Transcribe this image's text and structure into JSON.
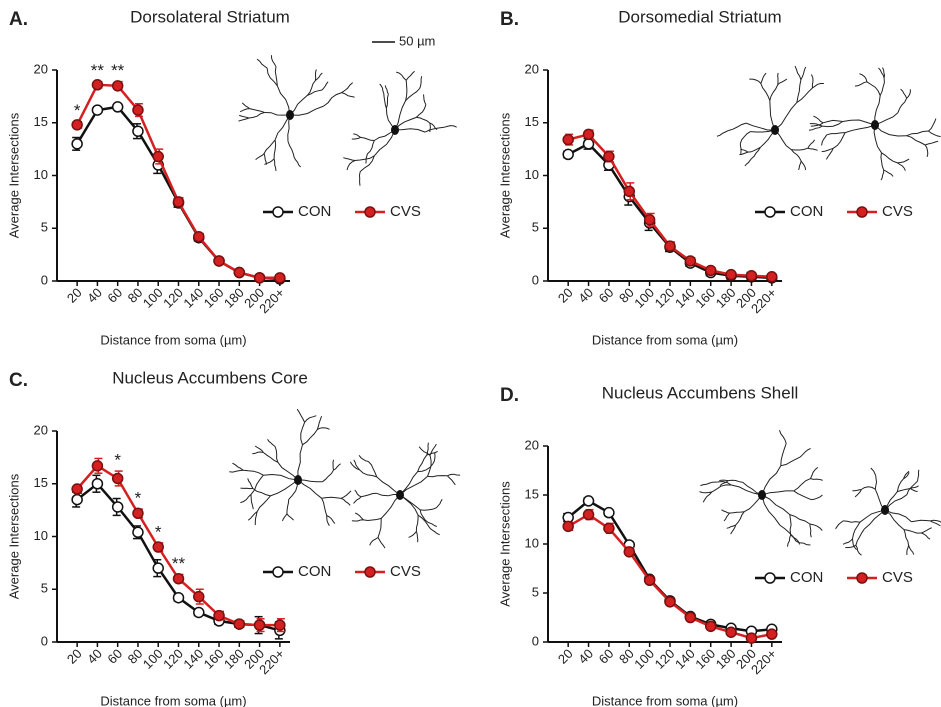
{
  "chart_data": [
    {
      "type": "line",
      "panel": "A.",
      "title": "Dorsolateral Striatum",
      "scale_bar_label": "50 µm",
      "x_label": "Distance from soma (µm)",
      "y_label": "Average Intersections",
      "categories": [
        "20",
        "40",
        "60",
        "80",
        "100",
        "120",
        "140",
        "160",
        "180",
        "200",
        "220+"
      ],
      "ylim": [
        0,
        20
      ],
      "yticks": [
        0,
        5,
        10,
        15,
        20
      ],
      "series": [
        {
          "name": "CON",
          "color": "#111111",
          "marker_fill": "#ffffff",
          "values": [
            13.0,
            16.2,
            16.5,
            14.2,
            11.0,
            7.4,
            4.1,
            1.9,
            0.8,
            0.3,
            0.2
          ],
          "errors": [
            0.6,
            0.2,
            0.2,
            0.7,
            0.8,
            0.4,
            0.3,
            0.2,
            0.1,
            0.1,
            0.1
          ]
        },
        {
          "name": "CVS",
          "color": "#d42020",
          "marker_fill": "#d42020",
          "values": [
            14.8,
            18.6,
            18.5,
            16.2,
            11.8,
            7.5,
            4.2,
            1.9,
            0.8,
            0.3,
            0.3
          ],
          "errors": [
            0.3,
            0.3,
            0.4,
            0.6,
            0.7,
            0.4,
            0.3,
            0.2,
            0.1,
            0.1,
            0.1
          ]
        }
      ],
      "annotations": [
        {
          "text": "*",
          "x": "20"
        },
        {
          "text": "**",
          "x": "40"
        },
        {
          "text": "**",
          "x": "60"
        }
      ]
    },
    {
      "type": "line",
      "panel": "B.",
      "title": "Dorsomedial Striatum",
      "x_label": "Distance from soma (µm)",
      "y_label": "Average Intersections",
      "categories": [
        "20",
        "40",
        "60",
        "80",
        "100",
        "120",
        "140",
        "160",
        "180",
        "200",
        "220+"
      ],
      "ylim": [
        0,
        20
      ],
      "yticks": [
        0,
        5,
        10,
        15,
        20
      ],
      "series": [
        {
          "name": "CON",
          "color": "#111111",
          "marker_fill": "#ffffff",
          "values": [
            12.0,
            13.0,
            11.0,
            8.0,
            5.5,
            3.2,
            1.7,
            0.8,
            0.5,
            0.4,
            0.3
          ],
          "errors": [
            0.3,
            0.5,
            0.5,
            0.8,
            0.7,
            0.4,
            0.3,
            0.3,
            0.3,
            0.4,
            0.3
          ]
        },
        {
          "name": "CVS",
          "color": "#d42020",
          "marker_fill": "#d42020",
          "values": [
            13.4,
            13.9,
            11.8,
            8.5,
            5.8,
            3.3,
            1.9,
            1.0,
            0.6,
            0.5,
            0.4
          ],
          "errors": [
            0.5,
            0.4,
            0.5,
            0.8,
            0.6,
            0.4,
            0.3,
            0.2,
            0.2,
            0.2,
            0.2
          ]
        }
      ],
      "annotations": []
    },
    {
      "type": "line",
      "panel": "C.",
      "title": "Nucleus Accumbens Core",
      "x_label": "Distance from soma (µm)",
      "y_label": "Average Intersections",
      "categories": [
        "20",
        "40",
        "60",
        "80",
        "100",
        "120",
        "140",
        "160",
        "180",
        "200",
        "220+"
      ],
      "ylim": [
        0,
        20
      ],
      "yticks": [
        0,
        5,
        10,
        15,
        20
      ],
      "series": [
        {
          "name": "CON",
          "color": "#111111",
          "marker_fill": "#ffffff",
          "values": [
            13.5,
            15.0,
            12.8,
            10.4,
            7.0,
            4.2,
            2.8,
            2.0,
            1.7,
            1.6,
            1.1
          ],
          "errors": [
            0.7,
            0.8,
            0.8,
            0.6,
            0.8,
            0.3,
            0.3,
            0.3,
            0.3,
            0.8,
            0.8
          ]
        },
        {
          "name": "CVS",
          "color": "#d42020",
          "marker_fill": "#d42020",
          "values": [
            14.5,
            16.7,
            15.5,
            12.2,
            9.0,
            6.0,
            4.3,
            2.5,
            1.7,
            1.6,
            1.6
          ],
          "errors": [
            0.4,
            0.7,
            0.7,
            0.4,
            0.4,
            0.4,
            0.7,
            0.4,
            0.3,
            0.6,
            0.6
          ]
        }
      ],
      "annotations": [
        {
          "text": "*",
          "x": "60"
        },
        {
          "text": "*",
          "x": "80"
        },
        {
          "text": "*",
          "x": "100"
        },
        {
          "text": "**",
          "x": "120"
        }
      ]
    },
    {
      "type": "line",
      "panel": "D.",
      "title": "Nucleus Accumbens Shell",
      "x_label": "Distance from soma (µm)",
      "y_label": "Average Intersections",
      "categories": [
        "20",
        "40",
        "60",
        "80",
        "100",
        "120",
        "140",
        "160",
        "180",
        "200",
        "220+"
      ],
      "ylim": [
        0,
        20
      ],
      "yticks": [
        0,
        5,
        10,
        15,
        20
      ],
      "series": [
        {
          "name": "CON",
          "color": "#111111",
          "marker_fill": "#ffffff",
          "values": [
            12.7,
            14.4,
            13.2,
            9.9,
            6.4,
            4.2,
            2.6,
            1.8,
            1.4,
            1.1,
            1.3
          ],
          "errors": [
            0.4,
            0.3,
            0.3,
            0.3,
            0.3,
            0.2,
            0.2,
            0.2,
            0.2,
            0.2,
            0.2
          ]
        },
        {
          "name": "CVS",
          "color": "#d42020",
          "marker_fill": "#d42020",
          "values": [
            11.8,
            13.0,
            11.6,
            9.2,
            6.3,
            4.1,
            2.5,
            1.6,
            1.0,
            0.4,
            0.8
          ],
          "errors": [
            0.4,
            0.5,
            0.5,
            0.4,
            0.3,
            0.2,
            0.2,
            0.2,
            0.2,
            0.2,
            0.2
          ]
        }
      ],
      "annotations": []
    }
  ]
}
